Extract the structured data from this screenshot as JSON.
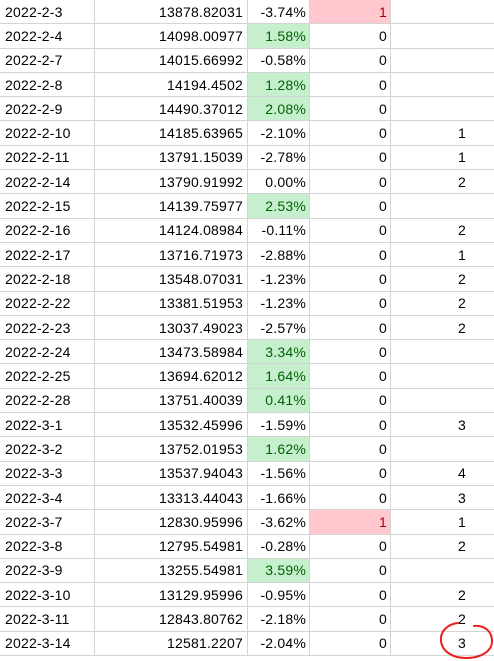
{
  "sheet": {
    "rows": [
      {
        "date": "2022-2-3",
        "value": "13878.82031",
        "pct": "-3.74%",
        "flag": "1",
        "extra": "",
        "pct_style": "none",
        "flag_style": "alert"
      },
      {
        "date": "2022-2-4",
        "value": "14098.00977",
        "pct": "1.58%",
        "flag": "0",
        "extra": "",
        "pct_style": "up",
        "flag_style": "none"
      },
      {
        "date": "2022-2-7",
        "value": "14015.66992",
        "pct": "-0.58%",
        "flag": "0",
        "extra": "",
        "pct_style": "none",
        "flag_style": "none"
      },
      {
        "date": "2022-2-8",
        "value": "14194.4502",
        "pct": "1.28%",
        "flag": "0",
        "extra": "",
        "pct_style": "up",
        "flag_style": "none"
      },
      {
        "date": "2022-2-9",
        "value": "14490.37012",
        "pct": "2.08%",
        "flag": "0",
        "extra": "",
        "pct_style": "up",
        "flag_style": "none"
      },
      {
        "date": "2022-2-10",
        "value": "14185.63965",
        "pct": "-2.10%",
        "flag": "0",
        "extra": "1",
        "pct_style": "none",
        "flag_style": "none"
      },
      {
        "date": "2022-2-11",
        "value": "13791.15039",
        "pct": "-2.78%",
        "flag": "0",
        "extra": "1",
        "pct_style": "none",
        "flag_style": "none"
      },
      {
        "date": "2022-2-14",
        "value": "13790.91992",
        "pct": "0.00%",
        "flag": "0",
        "extra": "2",
        "pct_style": "none",
        "flag_style": "none"
      },
      {
        "date": "2022-2-15",
        "value": "14139.75977",
        "pct": "2.53%",
        "flag": "0",
        "extra": "",
        "pct_style": "up",
        "flag_style": "none"
      },
      {
        "date": "2022-2-16",
        "value": "14124.08984",
        "pct": "-0.11%",
        "flag": "0",
        "extra": "2",
        "pct_style": "none",
        "flag_style": "none"
      },
      {
        "date": "2022-2-17",
        "value": "13716.71973",
        "pct": "-2.88%",
        "flag": "0",
        "extra": "1",
        "pct_style": "none",
        "flag_style": "none"
      },
      {
        "date": "2022-2-18",
        "value": "13548.07031",
        "pct": "-1.23%",
        "flag": "0",
        "extra": "2",
        "pct_style": "none",
        "flag_style": "none"
      },
      {
        "date": "2022-2-22",
        "value": "13381.51953",
        "pct": "-1.23%",
        "flag": "0",
        "extra": "2",
        "pct_style": "none",
        "flag_style": "none"
      },
      {
        "date": "2022-2-23",
        "value": "13037.49023",
        "pct": "-2.57%",
        "flag": "0",
        "extra": "2",
        "pct_style": "none",
        "flag_style": "none"
      },
      {
        "date": "2022-2-24",
        "value": "13473.58984",
        "pct": "3.34%",
        "flag": "0",
        "extra": "",
        "pct_style": "up",
        "flag_style": "none"
      },
      {
        "date": "2022-2-25",
        "value": "13694.62012",
        "pct": "1.64%",
        "flag": "0",
        "extra": "",
        "pct_style": "up",
        "flag_style": "none"
      },
      {
        "date": "2022-2-28",
        "value": "13751.40039",
        "pct": "0.41%",
        "flag": "0",
        "extra": "",
        "pct_style": "up",
        "flag_style": "none"
      },
      {
        "date": "2022-3-1",
        "value": "13532.45996",
        "pct": "-1.59%",
        "flag": "0",
        "extra": "3",
        "pct_style": "none",
        "flag_style": "none"
      },
      {
        "date": "2022-3-2",
        "value": "13752.01953",
        "pct": "1.62%",
        "flag": "0",
        "extra": "",
        "pct_style": "up",
        "flag_style": "none"
      },
      {
        "date": "2022-3-3",
        "value": "13537.94043",
        "pct": "-1.56%",
        "flag": "0",
        "extra": "4",
        "pct_style": "none",
        "flag_style": "none"
      },
      {
        "date": "2022-3-4",
        "value": "13313.44043",
        "pct": "-1.66%",
        "flag": "0",
        "extra": "3",
        "pct_style": "none",
        "flag_style": "none"
      },
      {
        "date": "2022-3-7",
        "value": "12830.95996",
        "pct": "-3.62%",
        "flag": "1",
        "extra": "1",
        "pct_style": "none",
        "flag_style": "alert"
      },
      {
        "date": "2022-3-8",
        "value": "12795.54981",
        "pct": "-0.28%",
        "flag": "0",
        "extra": "2",
        "pct_style": "none",
        "flag_style": "none"
      },
      {
        "date": "2022-3-9",
        "value": "13255.54981",
        "pct": "3.59%",
        "flag": "0",
        "extra": "",
        "pct_style": "up",
        "flag_style": "none"
      },
      {
        "date": "2022-3-10",
        "value": "13129.95996",
        "pct": "-0.95%",
        "flag": "0",
        "extra": "2",
        "pct_style": "none",
        "flag_style": "none"
      },
      {
        "date": "2022-3-11",
        "value": "12843.80762",
        "pct": "-2.18%",
        "flag": "0",
        "extra": "2",
        "pct_style": "none",
        "flag_style": "none"
      },
      {
        "date": "2022-3-14",
        "value": "12581.2207",
        "pct": "-2.04%",
        "flag": "0",
        "extra": "3",
        "pct_style": "none",
        "flag_style": "none"
      }
    ],
    "colors": {
      "positive_fill": "#c6efce",
      "positive_text": "#006100",
      "alert_fill": "#ffc7ce",
      "alert_text": "#9c0006",
      "annotation_ink": "#e8201c",
      "gridline": "#d4d4d4"
    }
  }
}
